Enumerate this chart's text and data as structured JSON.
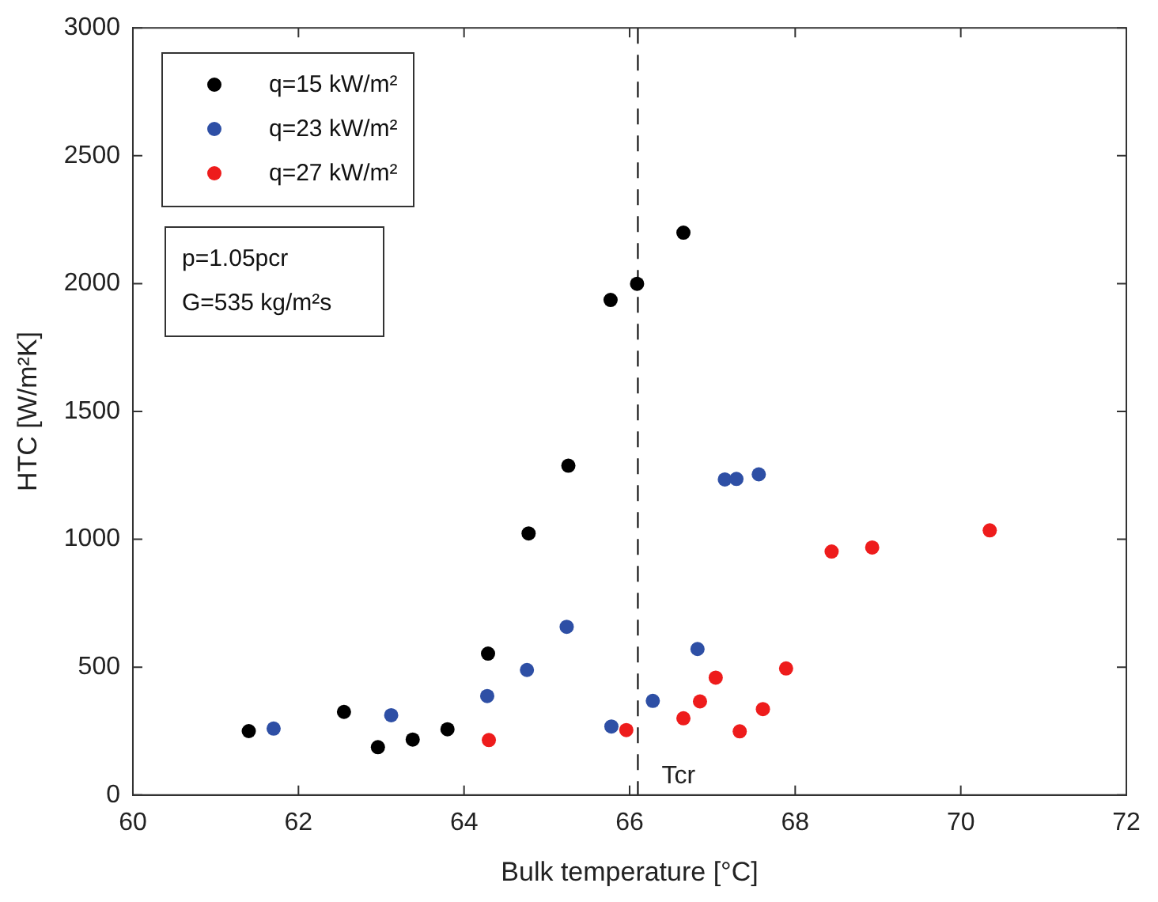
{
  "chart_data": {
    "type": "scatter",
    "xlabel": "Bulk temperature [°C]",
    "ylabel": "HTC [W/m²K]",
    "xlim": [
      60,
      72
    ],
    "xticks": [
      60,
      62,
      64,
      66,
      68,
      70,
      72
    ],
    "ylim": [
      0,
      3000
    ],
    "yticks": [
      0,
      500,
      1000,
      1500,
      2000,
      2500,
      3000
    ],
    "grid": false,
    "legend": "top left",
    "marker": "circle",
    "series": [
      {
        "name": "q=15 kW/m²",
        "color": "#000000",
        "x": [
          61.4,
          62.55,
          62.96,
          63.38,
          63.8,
          64.29,
          64.78,
          65.26,
          65.77,
          66.09,
          66.65
        ],
        "values": [
          250,
          325,
          187,
          217,
          257,
          553,
          1023,
          1288,
          1936,
          1999,
          2199
        ]
      },
      {
        "name": "q=23 kW/m²",
        "color": "#2e4fa5",
        "x": [
          61.7,
          63.12,
          64.28,
          64.76,
          65.24,
          65.78,
          66.28,
          66.82,
          67.15,
          67.29,
          67.56
        ],
        "values": [
          260,
          312,
          387,
          489,
          658,
          268,
          368,
          571,
          1234,
          1236,
          1254
        ]
      },
      {
        "name": "q=27 kW/m²",
        "color": "#ee1c1c",
        "x": [
          64.3,
          65.96,
          66.65,
          66.85,
          67.04,
          67.33,
          67.61,
          67.89,
          68.44,
          68.93,
          70.35
        ],
        "values": [
          215,
          254,
          300,
          366,
          459,
          249,
          336,
          495,
          952,
          968,
          1035
        ]
      }
    ],
    "ref_lines": [
      {
        "axis": "x",
        "value": 66.1,
        "label": "Tcr",
        "line_style": "dashed",
        "color": "#000000"
      }
    ],
    "annotations": [
      "p=1.05pcr",
      "G=535 kg/m²s"
    ]
  }
}
